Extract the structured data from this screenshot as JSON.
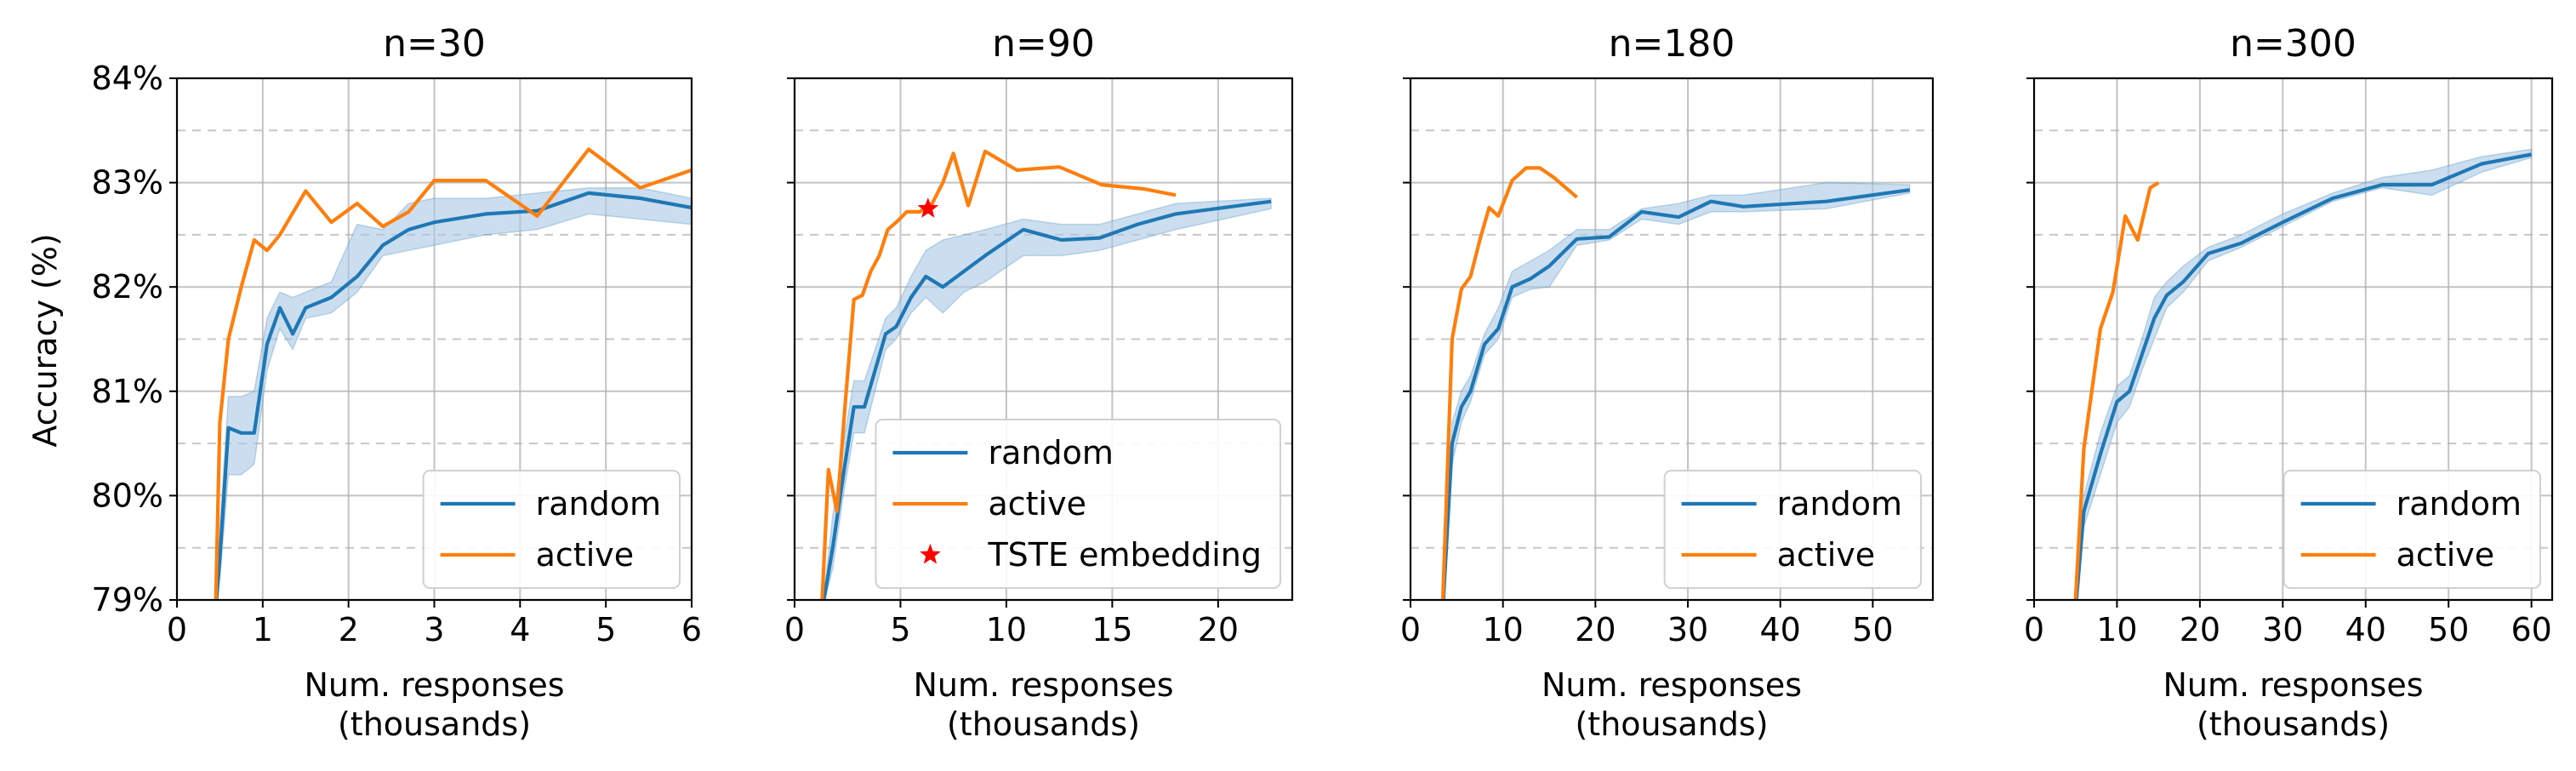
{
  "colors": {
    "random": "#1f77b4",
    "active": "#ff7f0e",
    "band": "#a9c8e4",
    "star": "#ff0000"
  },
  "ylabel": "Accuracy (%)",
  "chart_data": [
    {
      "type": "line",
      "title": "n=30",
      "xlabel": "Num. responses\n(thousands)",
      "xlim": [
        0,
        6
      ],
      "ylim": [
        79,
        84
      ],
      "xticks": [
        0,
        1,
        2,
        3,
        4,
        5,
        6
      ],
      "yticks": [
        79,
        80,
        81,
        82,
        83,
        84
      ],
      "ytick_labels": [
        "79%",
        "80%",
        "81%",
        "82%",
        "83%",
        "84%"
      ],
      "grid": true,
      "legend": "lower-right",
      "series": [
        {
          "name": "random",
          "x": [
            0.45,
            0.5,
            0.6,
            0.75,
            0.9,
            1.05,
            1.2,
            1.35,
            1.5,
            1.8,
            2.1,
            2.4,
            2.7,
            3.0,
            3.6,
            4.2,
            4.8,
            5.4,
            6.0
          ],
          "y": [
            78.9,
            79.4,
            80.65,
            80.6,
            80.6,
            81.45,
            81.8,
            81.55,
            81.8,
            81.9,
            82.1,
            82.4,
            82.55,
            82.62,
            82.7,
            82.73,
            82.9,
            82.85,
            82.76
          ],
          "band_low": [
            78.9,
            79.2,
            80.2,
            80.2,
            80.3,
            81.2,
            81.6,
            81.4,
            81.7,
            81.75,
            81.95,
            82.3,
            82.35,
            82.4,
            82.5,
            82.55,
            82.7,
            82.65,
            82.6
          ],
          "band_high": [
            78.9,
            79.7,
            80.95,
            80.95,
            81.0,
            81.7,
            81.95,
            81.9,
            81.95,
            82.05,
            82.6,
            82.55,
            82.8,
            82.85,
            82.85,
            82.9,
            82.95,
            82.95,
            82.85
          ]
        },
        {
          "name": "active",
          "x": [
            0.45,
            0.5,
            0.6,
            0.75,
            0.9,
            1.05,
            1.2,
            1.5,
            1.8,
            2.1,
            2.4,
            2.7,
            3.0,
            3.6,
            4.2,
            4.8,
            5.4,
            6.0
          ],
          "y": [
            78.9,
            80.7,
            81.5,
            82.0,
            82.45,
            82.35,
            82.5,
            82.92,
            82.62,
            82.8,
            82.58,
            82.72,
            83.02,
            83.02,
            82.68,
            83.32,
            82.95,
            83.12
          ]
        }
      ]
    },
    {
      "type": "line",
      "title": "n=90",
      "xlabel": "Num. responses\n(thousands)",
      "xlim": [
        0,
        23.5
      ],
      "ylim": [
        79,
        84
      ],
      "xticks": [
        0,
        5,
        10,
        15,
        20
      ],
      "yticks": [
        79,
        80,
        81,
        82,
        83,
        84
      ],
      "grid": true,
      "legend": "lower-right",
      "series": [
        {
          "name": "random",
          "x": [
            1.3,
            1.8,
            2.3,
            2.8,
            3.3,
            3.8,
            4.3,
            4.8,
            5.5,
            6.2,
            7.0,
            8.0,
            9.0,
            10.8,
            12.6,
            14.4,
            16.2,
            18.0,
            22.5
          ],
          "y": [
            78.9,
            79.5,
            80.2,
            80.85,
            80.85,
            81.2,
            81.55,
            81.62,
            81.9,
            82.1,
            82.0,
            82.15,
            82.3,
            82.55,
            82.45,
            82.47,
            82.6,
            82.7,
            82.82
          ],
          "band_low": [
            78.9,
            79.3,
            80.0,
            80.6,
            80.6,
            81.0,
            81.4,
            81.5,
            81.75,
            81.9,
            81.75,
            81.95,
            82.05,
            82.3,
            82.3,
            82.35,
            82.45,
            82.55,
            82.75
          ],
          "band_high": [
            78.9,
            79.8,
            80.5,
            81.1,
            81.1,
            81.4,
            81.7,
            81.8,
            82.1,
            82.35,
            82.45,
            82.5,
            82.55,
            82.65,
            82.6,
            82.6,
            82.7,
            82.8,
            82.85
          ]
        },
        {
          "name": "active",
          "x": [
            1.3,
            1.6,
            2.0,
            2.4,
            2.8,
            3.2,
            3.6,
            4.0,
            4.4,
            4.8,
            5.3,
            5.9,
            6.5,
            7.0,
            7.5,
            8.2,
            9.0,
            10.5,
            12.5,
            14.5,
            16.5,
            18.0
          ],
          "y": [
            79.0,
            80.25,
            79.85,
            80.9,
            81.88,
            81.92,
            82.15,
            82.3,
            82.55,
            82.62,
            82.72,
            82.72,
            82.8,
            83.0,
            83.28,
            82.78,
            83.3,
            83.12,
            83.15,
            82.98,
            82.94,
            82.88
          ]
        }
      ],
      "markers": [
        {
          "name": "TSTE embedding",
          "x": 6.3,
          "y": 82.75
        }
      ]
    },
    {
      "type": "line",
      "title": "n=180",
      "xlabel": "Num. responses\n(thousands)",
      "xlim": [
        0,
        56.5
      ],
      "ylim": [
        79,
        84
      ],
      "xticks": [
        0,
        10,
        20,
        30,
        40,
        50
      ],
      "yticks": [
        79,
        80,
        81,
        82,
        83,
        84
      ],
      "grid": true,
      "legend": "lower-right",
      "series": [
        {
          "name": "random",
          "x": [
            3.5,
            4.5,
            5.5,
            6.5,
            8.0,
            9.5,
            11.0,
            13.0,
            15.0,
            18.0,
            21.5,
            25.0,
            29.0,
            32.5,
            36.0,
            45.0,
            54.0
          ],
          "y": [
            78.9,
            80.5,
            80.85,
            81.0,
            81.45,
            81.6,
            82.0,
            82.08,
            82.2,
            82.46,
            82.48,
            82.72,
            82.67,
            82.82,
            82.77,
            82.82,
            82.93
          ],
          "band_low": [
            78.9,
            80.3,
            80.7,
            80.9,
            81.35,
            81.5,
            81.9,
            81.98,
            82.0,
            82.4,
            82.45,
            82.65,
            82.6,
            82.72,
            82.72,
            82.75,
            82.9
          ],
          "band_high": [
            78.9,
            80.7,
            81.0,
            81.15,
            81.55,
            81.8,
            82.15,
            82.25,
            82.35,
            82.55,
            82.55,
            82.75,
            82.8,
            82.88,
            82.88,
            83.0,
            82.98
          ]
        },
        {
          "name": "active",
          "x": [
            3.5,
            4.5,
            5.5,
            6.5,
            7.5,
            8.5,
            9.5,
            11.0,
            12.5,
            14.0,
            15.5,
            18.0
          ],
          "y": [
            79.0,
            81.5,
            81.98,
            82.1,
            82.45,
            82.76,
            82.68,
            83.02,
            83.14,
            83.14,
            83.05,
            82.86
          ]
        }
      ]
    },
    {
      "type": "line",
      "title": "n=300",
      "xlabel": "Num. responses\n(thousands)",
      "xlim": [
        0,
        62.5
      ],
      "ylim": [
        79,
        84
      ],
      "xticks": [
        0,
        10,
        20,
        30,
        40,
        50,
        60
      ],
      "yticks": [
        79,
        80,
        81,
        82,
        83,
        84
      ],
      "grid": true,
      "legend": "lower-right",
      "series": [
        {
          "name": "random",
          "x": [
            5.0,
            6.0,
            8.0,
            10.0,
            11.5,
            13.0,
            14.5,
            16.0,
            18.0,
            21.0,
            25.0,
            30.0,
            36.0,
            42.0,
            48.0,
            54.0,
            60.0
          ],
          "y": [
            78.9,
            79.85,
            80.4,
            80.9,
            81.0,
            81.35,
            81.7,
            81.92,
            82.05,
            82.32,
            82.42,
            82.62,
            82.85,
            82.98,
            82.98,
            83.18,
            83.27
          ],
          "band_low": [
            78.9,
            79.7,
            80.2,
            80.7,
            80.85,
            81.2,
            81.5,
            81.8,
            81.95,
            82.25,
            82.38,
            82.58,
            82.82,
            82.95,
            82.88,
            83.1,
            83.24
          ],
          "band_high": [
            78.9,
            80.0,
            80.6,
            81.05,
            81.15,
            81.5,
            81.9,
            82.05,
            82.2,
            82.38,
            82.5,
            82.7,
            82.9,
            83.05,
            83.12,
            83.25,
            83.32
          ]
        },
        {
          "name": "active",
          "x": [
            5.0,
            6.0,
            8.0,
            9.5,
            11.0,
            12.5,
            14.0,
            15.0
          ],
          "y": [
            79.0,
            80.45,
            81.6,
            81.95,
            82.68,
            82.45,
            82.95,
            83.0
          ]
        }
      ]
    }
  ]
}
